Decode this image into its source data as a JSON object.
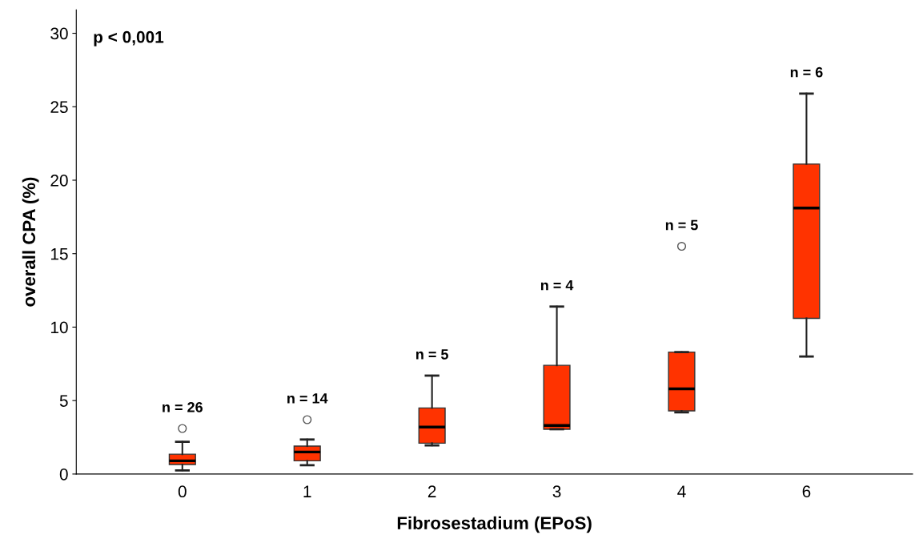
{
  "chart_data": {
    "type": "box",
    "xlabel": "Fibrosestadium (EPoS)",
    "ylabel": "overall CPA (%)",
    "categories": [
      "0",
      "1",
      "2",
      "3",
      "4",
      "6"
    ],
    "color": "#ff3300",
    "boxes": [
      {
        "low": 0.25,
        "q1": 0.65,
        "median": 0.9,
        "q3": 1.35,
        "high": 2.2,
        "outliers": [
          3.1
        ]
      },
      {
        "low": 0.6,
        "q1": 0.9,
        "median": 1.5,
        "q3": 1.9,
        "high": 2.35,
        "outliers": [
          3.7
        ]
      },
      {
        "low": 1.95,
        "q1": 2.1,
        "median": 3.2,
        "q3": 4.5,
        "high": 6.7
      },
      {
        "low": 3.05,
        "q1": 3.05,
        "median": 3.3,
        "q3": 7.4,
        "high": 11.4
      },
      {
        "low": 4.2,
        "q1": 4.3,
        "median": 5.8,
        "q3": 8.3,
        "high": 8.3,
        "outliers": [
          15.5
        ]
      },
      {
        "low": 8.0,
        "q1": 10.6,
        "median": 18.1,
        "q3": 21.1,
        "high": 25.9
      }
    ],
    "ylim": [
      0,
      31.6
    ],
    "yticks": [
      0,
      5,
      10,
      15,
      20,
      25,
      30
    ],
    "grid": false,
    "annotations": [
      "p < 0,001",
      "n = 26",
      "n = 14",
      "n = 5",
      "n = 4",
      "n = 5",
      "n = 6"
    ]
  }
}
